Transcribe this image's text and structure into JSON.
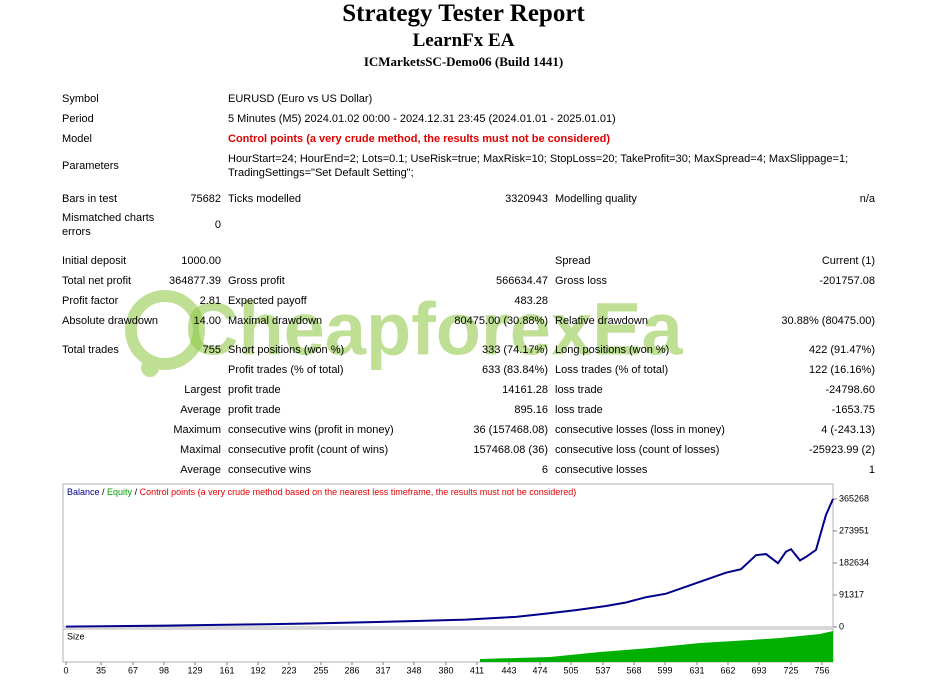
{
  "report": {
    "title": "Strategy Tester Report",
    "expert": "LearnFx EA",
    "server": "ICMarketsSC-Demo06 (Build 1441)",
    "watermark": "CheapforexEa",
    "rows": [
      [
        "Symbol",
        "EURUSD (Euro vs US Dollar)"
      ],
      [
        "Period",
        "5 Minutes (M5) 2024.01.02 00:00 - 2024.12.31 23:45 (2024.01.01 - 2025.01.01)"
      ],
      [
        "Model",
        "Control points (a very crude method, the results must not be considered)"
      ],
      [
        "Parameters",
        "HourStart=24; HourEnd=2; Lots=0.1; UseRisk=true; MaxRisk=10; StopLoss=20; TakeProfit=30; MaxSpread=4; MaxSlippage=1; TradingSettings=\"Set Default Setting\";"
      ],
      [
        "Bars in test",
        "75682",
        "Ticks modelled",
        "3320943",
        "Modelling quality",
        "n/a"
      ],
      [
        "Mismatched charts errors",
        "0"
      ],
      [
        "Initial deposit",
        "1000.00",
        "Spread",
        "Current (1)"
      ],
      [
        "Total net profit",
        "364877.39",
        "Gross profit",
        "566634.47",
        "Gross loss",
        "-201757.08"
      ],
      [
        "Profit factor",
        "2.81",
        "Expected payoff",
        "483.28"
      ],
      [
        "Absolute drawdown",
        "14.00",
        "Maximal drawdown",
        "80475.00 (30.88%)",
        "Relative drawdown",
        "30.88% (80475.00)"
      ],
      [
        "Total trades",
        "755",
        "Short positions (won %)",
        "333 (74.17%)",
        "Long positions (won %)",
        "422 (91.47%)"
      ],
      [
        "Profit trades (% of total)",
        "633 (83.84%)",
        "Loss trades (% of total)",
        "122 (16.16%)"
      ],
      [
        "Largest",
        "profit trade",
        "14161.28",
        "loss trade",
        "-24798.60"
      ],
      [
        "Average",
        "profit trade",
        "895.16",
        "loss trade",
        "-1653.75"
      ],
      [
        "Maximum",
        "consecutive wins (profit in money)",
        "36 (157468.08)",
        "consecutive losses (loss in money)",
        "4 (-243.13)"
      ],
      [
        "Maximal",
        "consecutive profit (count of wins)",
        "157468.08 (36)",
        "consecutive loss (count of losses)",
        "-25923.99 (2)"
      ],
      [
        "Average",
        "consecutive wins",
        "6",
        "consecutive losses",
        "1"
      ]
    ]
  },
  "chart_data": {
    "type": "line",
    "legend": [
      {
        "text": "Balance",
        "color": "#00008b"
      },
      {
        "text": "Equity",
        "color": "#00a000"
      },
      {
        "text": "Control points (a very crude method based on the nearest less timeframe, the results must not be considered)",
        "color": "#e00000"
      }
    ],
    "legend_separator": " / ",
    "size_label": "Size",
    "x": [
      0,
      50,
      100,
      150,
      200,
      250,
      300,
      350,
      400,
      450,
      480,
      510,
      540,
      560,
      580,
      600,
      620,
      640,
      660,
      675,
      690,
      700,
      712,
      720,
      725,
      734,
      740,
      750,
      755,
      760,
      767
    ],
    "series": [
      {
        "name": "Balance",
        "color": "#00008b",
        "values": [
          1000,
          2500,
          4000,
          6000,
          8000,
          10500,
          13500,
          17000,
          21000,
          29000,
          38000,
          48000,
          60000,
          70000,
          85000,
          95000,
          115000,
          135000,
          155000,
          165000,
          205000,
          208000,
          182000,
          215000,
          222000,
          190000,
          200000,
          220000,
          270000,
          320000,
          365268
        ]
      }
    ],
    "xlim": [
      0,
      767
    ],
    "xticks": [
      0,
      35,
      67,
      98,
      129,
      161,
      192,
      223,
      255,
      286,
      317,
      348,
      380,
      411,
      443,
      474,
      505,
      537,
      568,
      599,
      631,
      662,
      693,
      725,
      756
    ],
    "ylim": [
      0,
      408000
    ],
    "yticks": [
      0,
      91317,
      182634,
      273951,
      365268
    ]
  }
}
